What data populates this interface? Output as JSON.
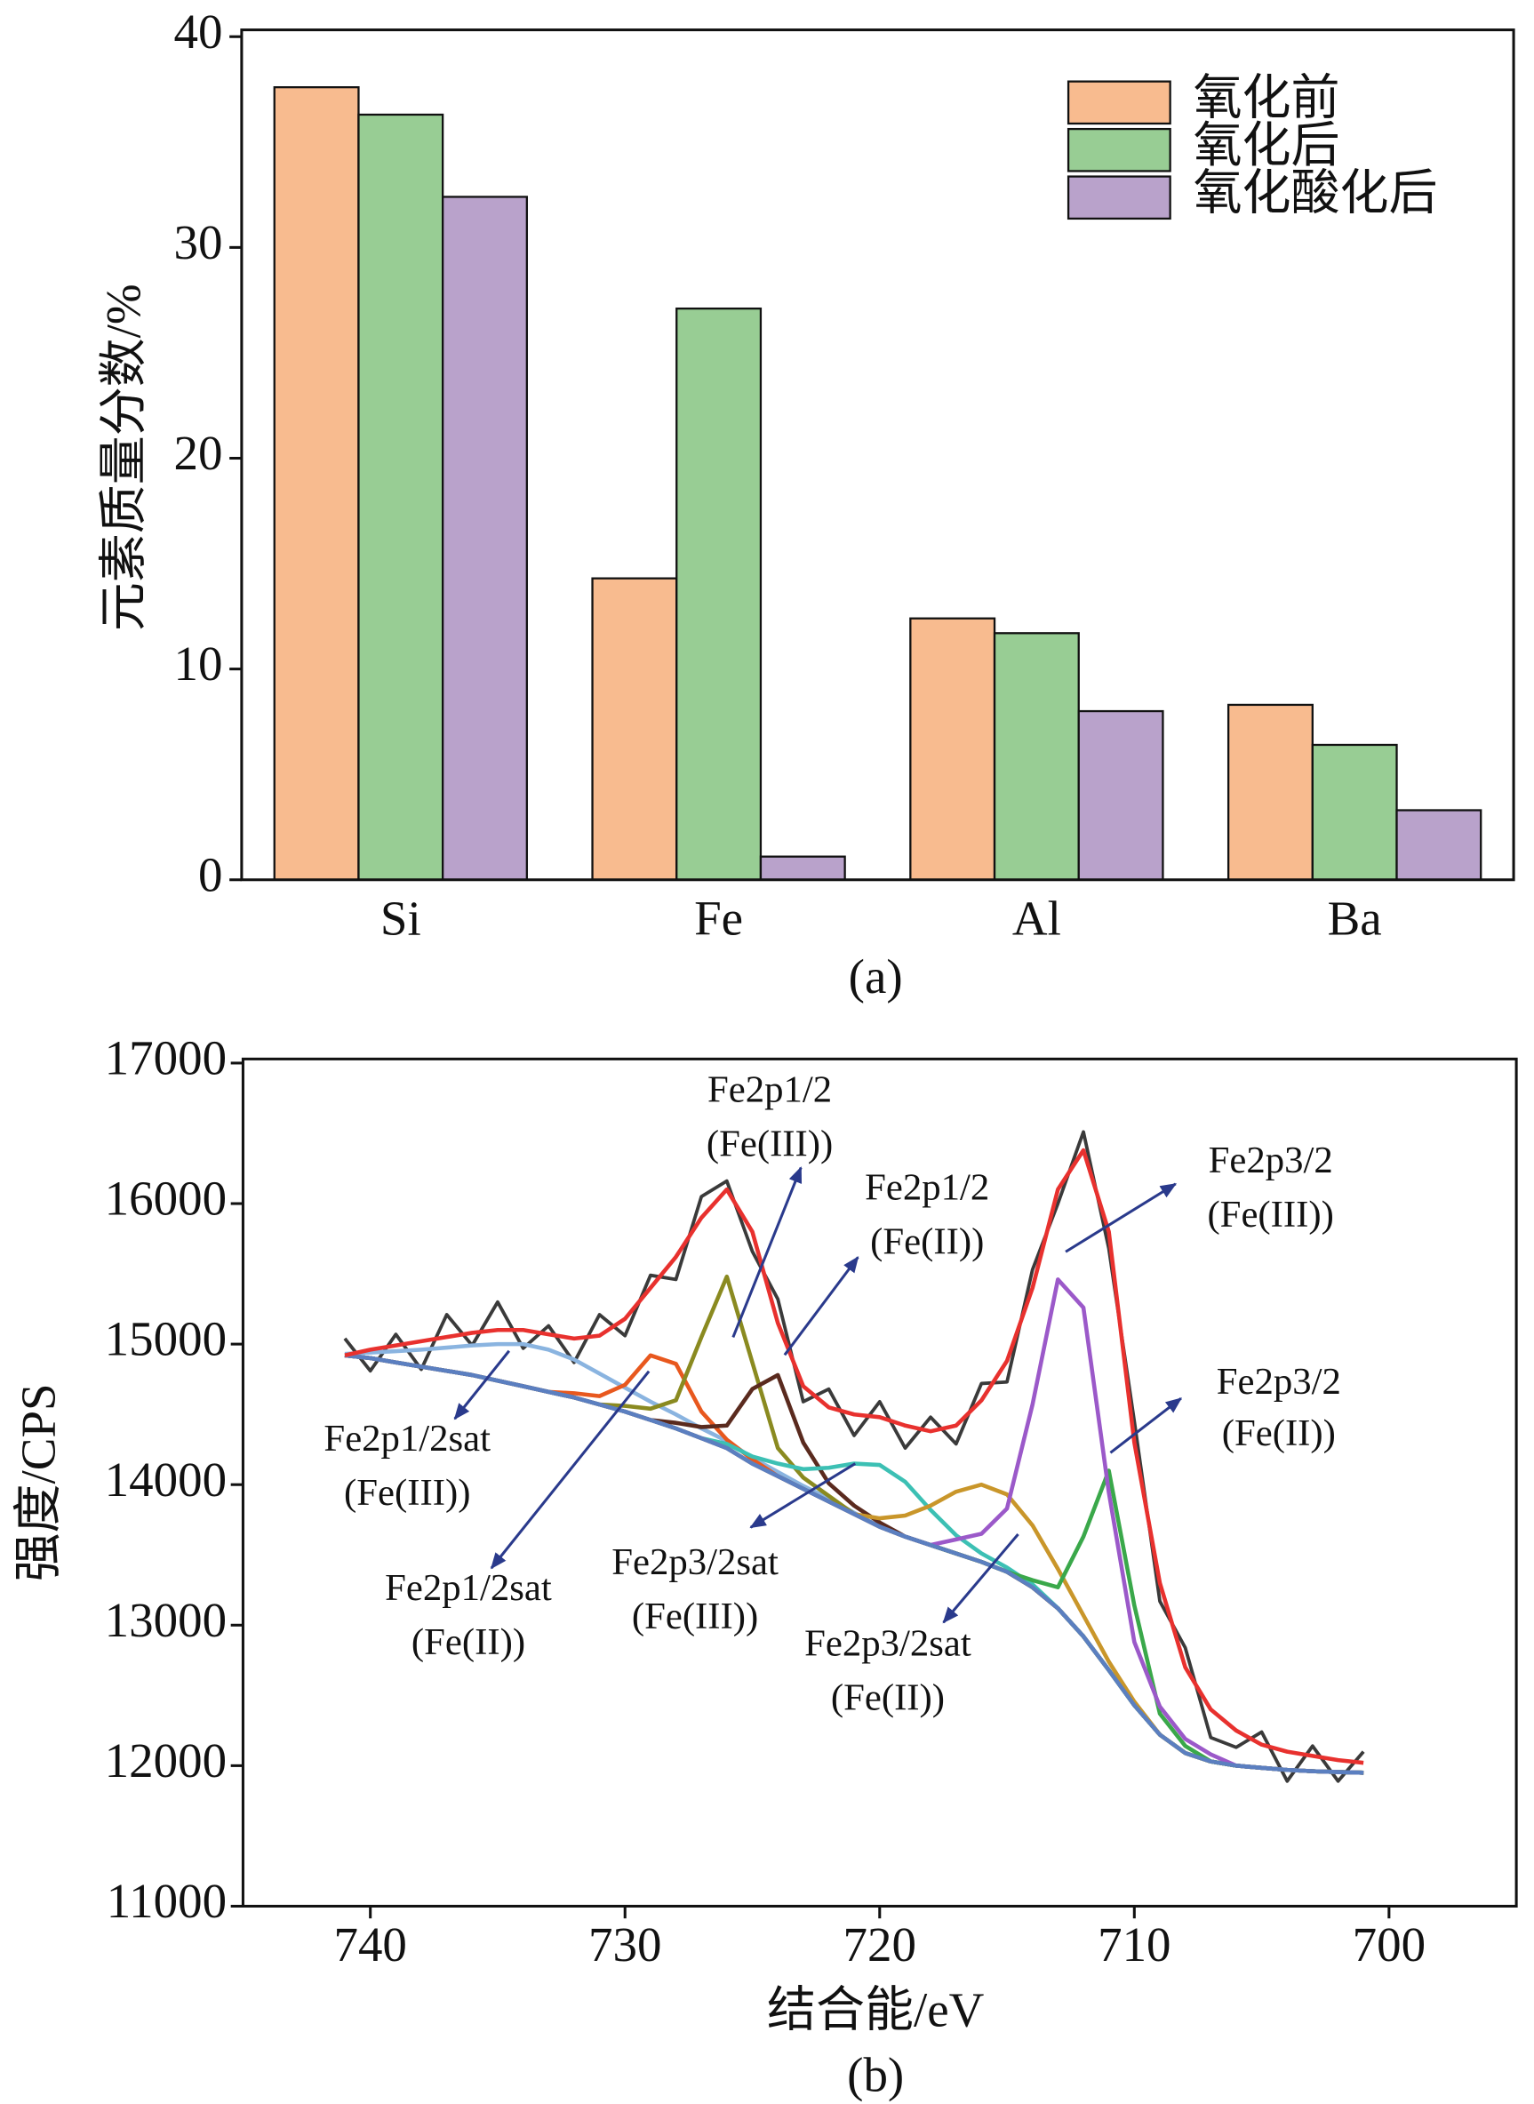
{
  "chart_data": [
    {
      "type": "bar",
      "ylabel": "元素质量分数/%",
      "caption": "(a)",
      "categories": [
        "Si",
        "Fe",
        "Al",
        "Ba"
      ],
      "series": [
        {
          "name": "氧化前",
          "color": "#f8bb8f",
          "values": [
            37.6,
            14.3,
            12.4,
            8.3
          ]
        },
        {
          "name": "氧化后",
          "color": "#98cd94",
          "values": [
            36.3,
            27.1,
            11.7,
            6.4
          ]
        },
        {
          "name": "氧化酸化后",
          "color": "#b9a2cb",
          "values": [
            32.4,
            1.1,
            8.0,
            3.3
          ]
        }
      ],
      "ylim": [
        0,
        40
      ],
      "yticks": [
        0,
        10,
        20,
        30,
        40
      ],
      "legend": "upper right"
    },
    {
      "type": "line",
      "xlabel": "结合能/eV",
      "ylabel": "强度/CPS",
      "caption": "(b)",
      "x": [
        741,
        740,
        739,
        738,
        737,
        736,
        735,
        734,
        733,
        732,
        731,
        730,
        729,
        728,
        727,
        726,
        725,
        724,
        723,
        722,
        721,
        720,
        719,
        718,
        717,
        716,
        715,
        714,
        713,
        712,
        711,
        710,
        709,
        708,
        707,
        706,
        705,
        704,
        703,
        702,
        701
      ],
      "series": [
        {
          "color": "#3a3a3a",
          "values": [
            15040,
            14810,
            15070,
            14820,
            15210,
            14990,
            15300,
            14970,
            15130,
            14870,
            15210,
            15060,
            15490,
            15460,
            16050,
            16160,
            15660,
            15320,
            14590,
            14680,
            14350,
            14590,
            14260,
            14480,
            14290,
            14720,
            14730,
            15530,
            16000,
            16510,
            15680,
            14450,
            13170,
            12840,
            12200,
            12130,
            12240,
            11890,
            12140,
            11890,
            12100
          ]
        },
        {
          "color": "#8ab4e0",
          "values": [
            14930,
            14940,
            14950,
            14960,
            14975,
            14990,
            15000,
            15000,
            14960,
            14890,
            14790,
            14690,
            14590,
            14500,
            14400,
            14310,
            14190,
            14090,
            13990,
            13900,
            13800,
            13700,
            13630,
            13570,
            13510,
            13450,
            13380,
            13270,
            13120,
            12920,
            12680,
            12430,
            12220,
            12090,
            12030,
            12000,
            11985,
            11970,
            11960,
            11955,
            11950
          ]
        },
        {
          "color": "#e8581e",
          "values": [
            14920,
            14900,
            14870,
            14840,
            14810,
            14780,
            14740,
            14700,
            14660,
            14650,
            14630,
            14710,
            14920,
            14860,
            14520,
            14320,
            14180,
            14060,
            13970,
            13880,
            13790,
            13700,
            13630,
            13570,
            13510,
            13450,
            13380,
            13270,
            13120,
            12920,
            12680,
            12430,
            12220,
            12090,
            12030,
            12000,
            11985,
            11970,
            11960,
            11955,
            11950
          ]
        },
        {
          "color": "#8a8a20",
          "values": [
            14920,
            14900,
            14870,
            14840,
            14810,
            14780,
            14740,
            14700,
            14660,
            14620,
            14570,
            14560,
            14540,
            14600,
            15050,
            15480,
            14870,
            14260,
            14050,
            13920,
            13790,
            13700,
            13630,
            13570,
            13510,
            13450,
            13380,
            13270,
            13120,
            12920,
            12680,
            12430,
            12220,
            12090,
            12030,
            12000,
            11985,
            11970,
            11960,
            11955,
            11950
          ]
        },
        {
          "color": "#5a2a1e",
          "values": [
            14920,
            14900,
            14870,
            14840,
            14810,
            14780,
            14740,
            14700,
            14660,
            14620,
            14570,
            14520,
            14460,
            14440,
            14410,
            14420,
            14680,
            14780,
            14300,
            14010,
            13850,
            13730,
            13630,
            13570,
            13510,
            13450,
            13380,
            13270,
            13120,
            12920,
            12680,
            12430,
            12220,
            12090,
            12030,
            12000,
            11985,
            11970,
            11960,
            11955,
            11950
          ]
        },
        {
          "color": "#3cc0b4",
          "values": [
            14920,
            14900,
            14870,
            14840,
            14810,
            14780,
            14740,
            14700,
            14660,
            14620,
            14570,
            14520,
            14460,
            14400,
            14330,
            14290,
            14200,
            14150,
            14110,
            14120,
            14150,
            14140,
            14020,
            13820,
            13640,
            13510,
            13410,
            13290,
            13120,
            12920,
            12680,
            12430,
            12220,
            12090,
            12030,
            12000,
            11985,
            11970,
            11960,
            11955,
            11950
          ]
        },
        {
          "color": "#c9962a",
          "values": [
            14920,
            14900,
            14870,
            14840,
            14810,
            14780,
            14740,
            14700,
            14660,
            14620,
            14570,
            14520,
            14460,
            14400,
            14330,
            14260,
            14150,
            14060,
            13970,
            13880,
            13790,
            13760,
            13780,
            13850,
            13950,
            14000,
            13930,
            13710,
            13400,
            13070,
            12740,
            12455,
            12220,
            12090,
            12030,
            12000,
            11985,
            11970,
            11960,
            11955,
            11950
          ]
        },
        {
          "color": "#3aa84a",
          "values": [
            14920,
            14900,
            14870,
            14840,
            14810,
            14780,
            14740,
            14700,
            14660,
            14620,
            14570,
            14520,
            14460,
            14400,
            14330,
            14260,
            14150,
            14060,
            13970,
            13880,
            13790,
            13700,
            13630,
            13570,
            13510,
            13450,
            13380,
            13320,
            13270,
            13630,
            14100,
            13140,
            12370,
            12140,
            12030,
            12000,
            11985,
            11970,
            11960,
            11955,
            11950
          ]
        },
        {
          "color": "#9b59c9",
          "values": [
            14920,
            14900,
            14870,
            14840,
            14810,
            14780,
            14740,
            14700,
            14660,
            14620,
            14570,
            14520,
            14460,
            14400,
            14330,
            14260,
            14150,
            14060,
            13970,
            13880,
            13790,
            13700,
            13630,
            13570,
            13610,
            13650,
            13830,
            14570,
            15460,
            15260,
            13945,
            12880,
            12420,
            12190,
            12080,
            12000,
            11985,
            11970,
            11960,
            11955,
            11950
          ]
        },
        {
          "color": "#5b7fc0",
          "values": [
            14920,
            14900,
            14870,
            14840,
            14810,
            14780,
            14740,
            14700,
            14660,
            14620,
            14570,
            14520,
            14460,
            14400,
            14330,
            14260,
            14150,
            14060,
            13970,
            13880,
            13790,
            13700,
            13630,
            13570,
            13510,
            13450,
            13380,
            13270,
            13120,
            12920,
            12680,
            12430,
            12220,
            12090,
            12030,
            12000,
            11985,
            11970,
            11960,
            11955,
            11950
          ]
        },
        {
          "color": "#e8312e",
          "values": [
            14920,
            14960,
            14990,
            15020,
            15050,
            15080,
            15100,
            15100,
            15070,
            15040,
            15060,
            15180,
            15400,
            15620,
            15900,
            16100,
            15800,
            15150,
            14700,
            14550,
            14500,
            14480,
            14420,
            14380,
            14420,
            14600,
            14880,
            15400,
            16100,
            16380,
            15800,
            14300,
            13300,
            12700,
            12400,
            12250,
            12150,
            12100,
            12070,
            12040,
            12020
          ]
        }
      ],
      "xlim": [
        745,
        695
      ],
      "xticks": [
        740,
        730,
        720,
        710,
        700
      ],
      "ylim": [
        11000,
        17000
      ],
      "yticks": [
        11000,
        12000,
        13000,
        14000,
        15000,
        16000,
        17000
      ],
      "annotations": [
        [
          "Fe2p1/2",
          "(Fe(III))"
        ],
        [
          "Fe2p1/2",
          "(Fe(II))"
        ],
        [
          "Fe2p3/2",
          "(Fe(III))"
        ],
        [
          "Fe2p3/2",
          "(Fe(II))"
        ],
        [
          "Fe2p1/2sat",
          "(Fe(III))"
        ],
        [
          "Fe2p1/2sat",
          "(Fe(II))"
        ],
        [
          "Fe2p3/2sat",
          "(Fe(III))"
        ],
        [
          "Fe2p3/2sat",
          "(Fe(II))"
        ]
      ]
    }
  ]
}
